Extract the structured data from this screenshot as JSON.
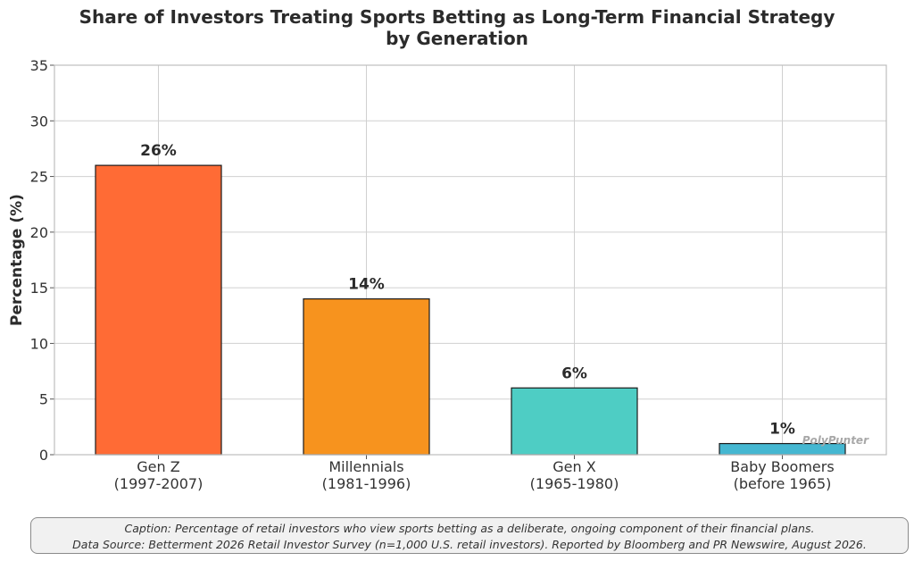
{
  "title_lines": [
    "Share of Investors Treating Sports Betting as Long-Term Financial Strategy",
    "by Generation"
  ],
  "chart_data": {
    "type": "bar",
    "title": "Share of Investors Treating Sports Betting as Long-Term Financial Strategy by Generation",
    "xlabel": "",
    "ylabel": "Percentage (%)",
    "ylim": [
      0,
      35
    ],
    "yticks": [
      "0",
      "5",
      "10",
      "15",
      "20",
      "25",
      "30",
      "35"
    ],
    "grid": true,
    "categories": [
      [
        "Gen Z",
        "(1997-2007)"
      ],
      [
        "Millennials",
        "(1981-1996)"
      ],
      [
        "Gen X",
        "(1965-1980)"
      ],
      [
        "Baby Boomers",
        "(before 1965)"
      ]
    ],
    "values": [
      26,
      14,
      6,
      1
    ],
    "data_labels": [
      "26%",
      "14%",
      "6%",
      "1%"
    ],
    "colors": [
      "#FF6B35",
      "#F7931E",
      "#4ECDC4",
      "#45B7D1"
    ]
  },
  "watermark": "PolyPunter",
  "caption": {
    "line1": "Caption: Percentage of retail investors who view sports betting as a deliberate, ongoing component of their financial plans.",
    "line2": "Data Source: Betterment 2026 Retail Investor Survey (n=1,000 U.S. retail investors). Reported by Bloomberg and PR Newswire, August 2026."
  }
}
